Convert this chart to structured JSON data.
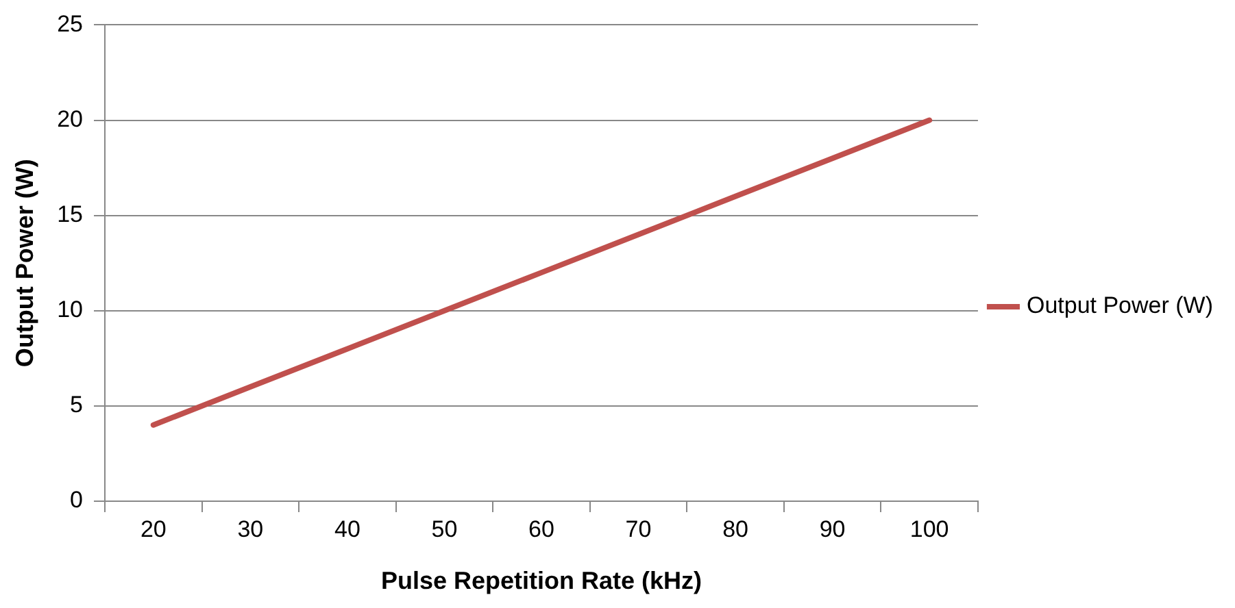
{
  "chart_data": {
    "type": "line",
    "xlabel": "Pulse Repetition Rate (kHz)",
    "ylabel": "Output Power (W)",
    "categories": [
      "20",
      "30",
      "40",
      "50",
      "60",
      "70",
      "80",
      "90",
      "100"
    ],
    "series": [
      {
        "name": "Output Power (W)",
        "color": "#c0504d",
        "values": [
          4,
          6,
          8,
          10,
          12,
          14,
          16,
          18,
          20
        ]
      }
    ],
    "ylim": [
      0,
      25
    ],
    "yticks": [
      0,
      5,
      10,
      15,
      20,
      25
    ],
    "grid": "y",
    "legend": "right",
    "marker": "none",
    "line_style": "solid"
  }
}
